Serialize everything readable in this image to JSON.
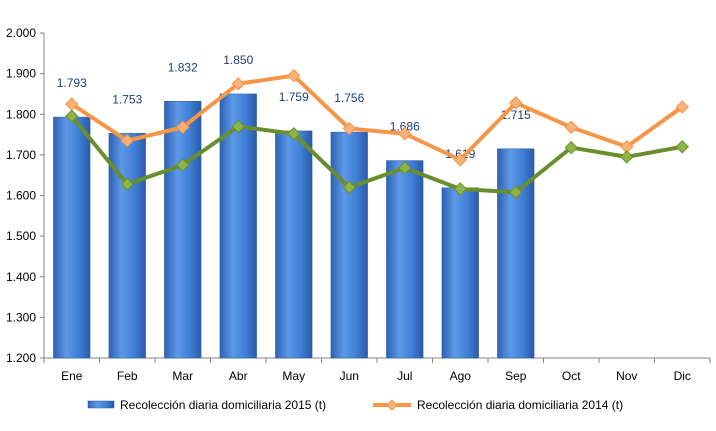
{
  "chart_data": {
    "type": "bar",
    "categories": [
      "Ene",
      "Feb",
      "Mar",
      "Abr",
      "May",
      "Jun",
      "Jul",
      "Ago",
      "Sep",
      "Oct",
      "Nov",
      "Dic"
    ],
    "ylim": [
      1200,
      2000
    ],
    "yticks": [
      1200,
      1300,
      1400,
      1500,
      1600,
      1700,
      1800,
      1900,
      2000
    ],
    "ytick_labels": [
      "1.200",
      "1.300",
      "1.400",
      "1.500",
      "1.600",
      "1.700",
      "1.800",
      "1.900",
      "2.000"
    ],
    "grid": false,
    "legend_position": "bottom",
    "series": [
      {
        "name": "Recolección diaria domiciliaria 2015 (t)",
        "type": "bar",
        "color": "#3F7FD6",
        "values": [
          1793,
          1753,
          1832,
          1850,
          1759,
          1756,
          1686,
          1619,
          1715,
          null,
          null,
          null
        ],
        "data_labels": [
          "1.793",
          "1.753",
          "1.832",
          "1.850",
          "1.759",
          "1.756",
          "1.686",
          "1.619",
          "1.715",
          "",
          "",
          ""
        ]
      },
      {
        "name": "Recolección diaria domiciliaria 2014 (t)",
        "type": "line",
        "color": "#F79646",
        "values": [
          1825,
          1735,
          1768,
          1875,
          1895,
          1765,
          1752,
          1688,
          1828,
          1768,
          1720,
          1818
        ]
      },
      {
        "name": "",
        "type": "line",
        "color": "#6A8E2E",
        "values": [
          1795,
          1628,
          1675,
          1770,
          1752,
          1620,
          1668,
          1616,
          1608,
          1718,
          1695,
          1720
        ]
      }
    ]
  }
}
